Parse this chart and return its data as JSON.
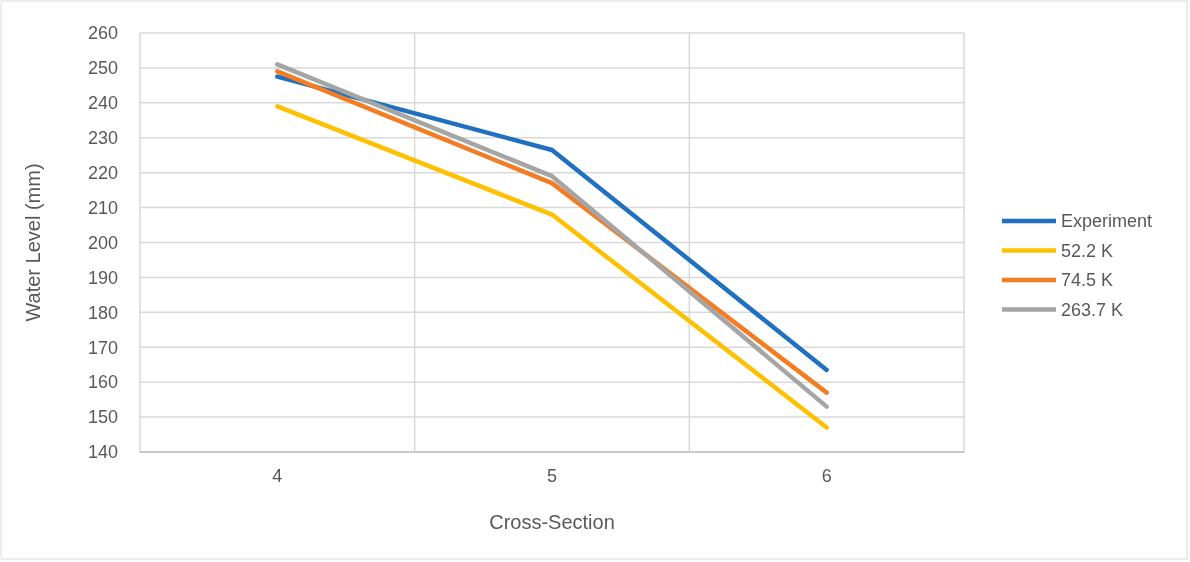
{
  "chart_data": {
    "type": "line",
    "xlabel": "Cross-Section",
    "ylabel": "Water Level (mm)",
    "categories": [
      "4",
      "5",
      "6"
    ],
    "series": [
      {
        "name": "Experiment",
        "color": "#1f70c1",
        "values": [
          247.5,
          226.5,
          163.5
        ]
      },
      {
        "name": "52.2 K",
        "color": "#ffc000",
        "values": [
          239,
          208,
          147
        ]
      },
      {
        "name": "74.5 K",
        "color": "#f47d23",
        "values": [
          249,
          217,
          157
        ]
      },
      {
        "name": "263.7 K",
        "color": "#a5a5a5",
        "values": [
          251,
          219,
          153
        ]
      }
    ],
    "ylim": [
      140,
      260
    ],
    "yticks": [
      140,
      150,
      160,
      170,
      180,
      190,
      200,
      210,
      220,
      230,
      240,
      250,
      260
    ],
    "grid": true,
    "legend": "right",
    "marker": "none",
    "line_style": "solid"
  }
}
